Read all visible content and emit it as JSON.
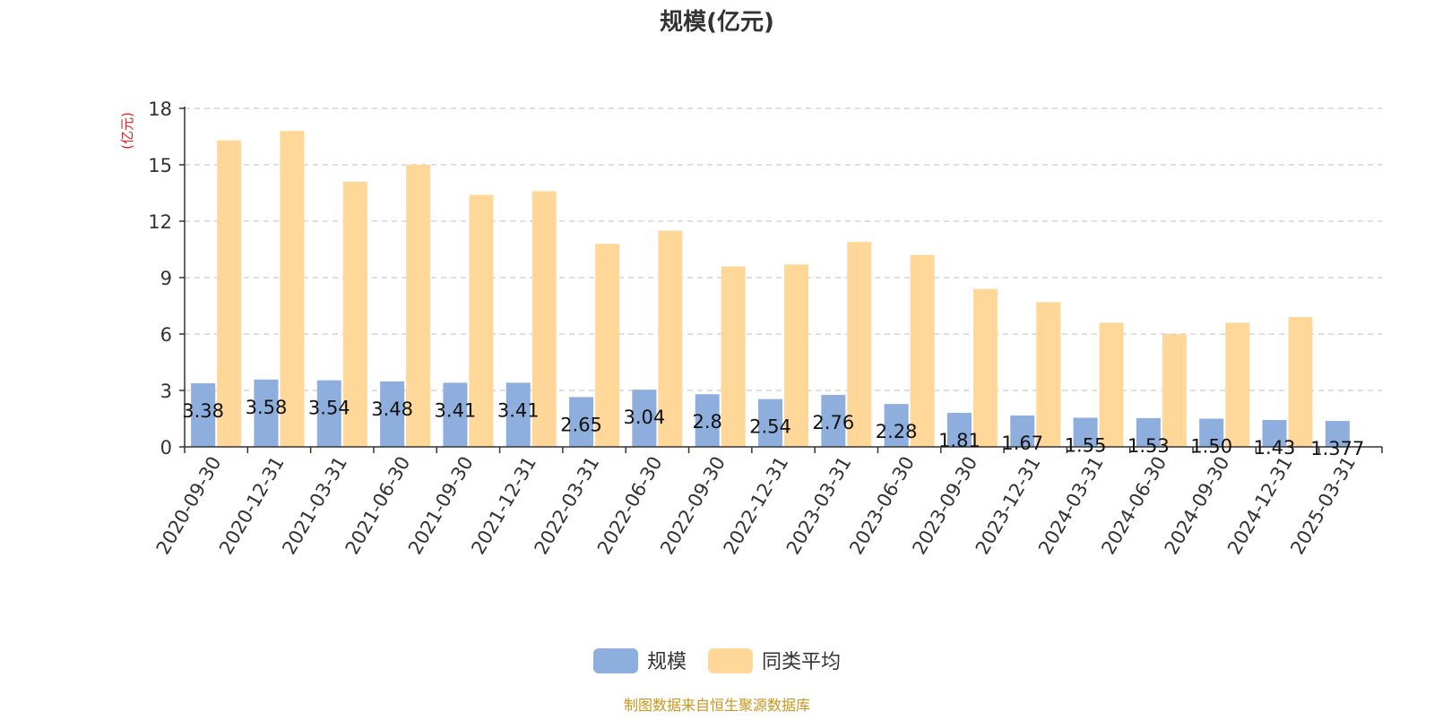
{
  "chart_data": {
    "type": "bar",
    "title": "规模(亿元)",
    "ylabel": "(亿元)",
    "xlabel": "",
    "ylim": [
      0,
      18
    ],
    "yticks": [
      0,
      3,
      6,
      9,
      12,
      15,
      18
    ],
    "grid": true,
    "legend_position": "bottom",
    "categories": [
      "2020-09-30",
      "2020-12-31",
      "2021-03-31",
      "2021-06-30",
      "2021-09-30",
      "2021-12-31",
      "2022-03-31",
      "2022-06-30",
      "2022-09-30",
      "2022-12-31",
      "2023-03-31",
      "2023-06-30",
      "2023-09-30",
      "2023-12-31",
      "2024-03-31",
      "2024-06-30",
      "2024-09-30",
      "2024-12-31",
      "2025-03-31"
    ],
    "series": [
      {
        "name": "规模",
        "color": "#8eaedd",
        "values": [
          3.38,
          3.58,
          3.54,
          3.48,
          3.41,
          3.41,
          2.65,
          3.04,
          2.8,
          2.54,
          2.76,
          2.28,
          1.81,
          1.67,
          1.55,
          1.53,
          1.5,
          1.43,
          1.377
        ],
        "labels": [
          "3.38",
          "3.58",
          "3.54",
          "3.48",
          "3.41",
          "3.41",
          "2.65",
          "3.04",
          "2.8",
          "2.54",
          "2.76",
          "2.28",
          "1.81",
          "1.67",
          "1.55",
          "1.53",
          "1.50",
          "1.43",
          "1.377"
        ]
      },
      {
        "name": "同类平均",
        "color": "#ffd899",
        "values": [
          16.3,
          16.8,
          14.1,
          15.0,
          13.4,
          13.6,
          10.8,
          11.5,
          9.6,
          9.7,
          10.9,
          10.2,
          8.4,
          7.7,
          6.6,
          6.0,
          6.6,
          6.9,
          null
        ]
      }
    ]
  },
  "colors": {
    "axis_label": "#e02020",
    "source_text": "#c8961e",
    "grid": "#cccccc",
    "text": "#333333"
  },
  "source": "制图数据来自恒生聚源数据库"
}
